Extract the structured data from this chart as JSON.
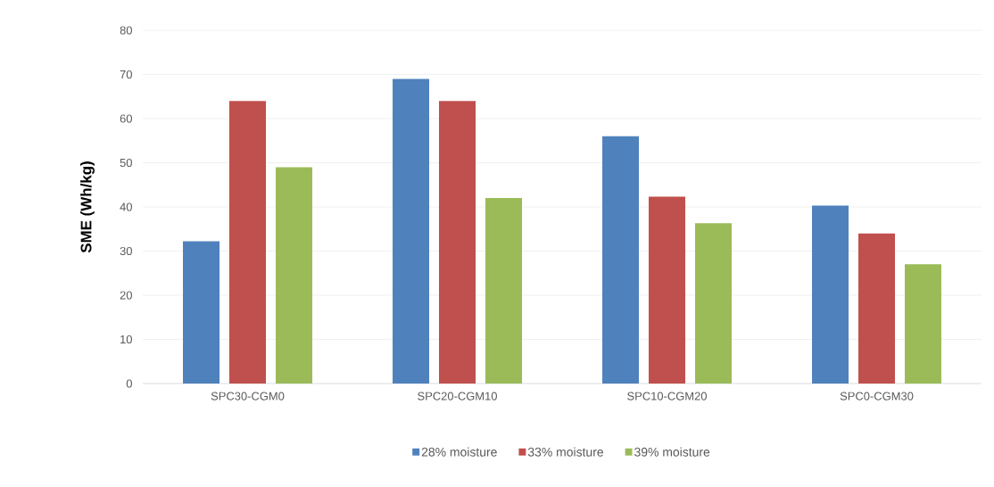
{
  "chart_data": {
    "type": "bar",
    "ylabel": "SME (Wh/kg)",
    "categories": [
      "SPC30-CGM0",
      "SPC20-CGM10",
      "SPC10-CGM20",
      "SPC0-CGM30"
    ],
    "series": [
      {
        "name": "28% moisture",
        "color": "#4f81bd",
        "values": [
          32.2,
          69,
          56,
          40.3
        ]
      },
      {
        "name": "33% moisture",
        "color": "#c0504d",
        "values": [
          64,
          64,
          42.3,
          34
        ]
      },
      {
        "name": "39% moisture",
        "color": "#9bbb59",
        "values": [
          49,
          42,
          36.3,
          27
        ]
      }
    ],
    "ylim": [
      0,
      80
    ],
    "yticks": [
      0,
      10,
      20,
      30,
      40,
      50,
      60,
      70,
      80
    ],
    "grid": "y",
    "legend": "bottom"
  }
}
